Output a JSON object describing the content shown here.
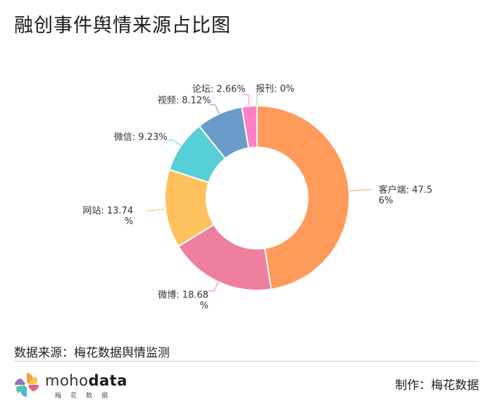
{
  "title": "融创事件舆情来源占比图",
  "chart_data": {
    "type": "pie",
    "style": "donut",
    "slices": [
      {
        "name": "客户端",
        "value": 47.56,
        "label_lines": [
          "客户端: 47.5",
          "6%"
        ],
        "color": "#ff9b5a"
      },
      {
        "name": "微博",
        "value": 18.68,
        "label_lines": [
          "微博: 18.68",
          "%"
        ],
        "color": "#ef7f9e"
      },
      {
        "name": "网站",
        "value": 13.74,
        "label_lines": [
          "网站: 13.74",
          "%"
        ],
        "color": "#ffc15e"
      },
      {
        "name": "微信",
        "value": 9.23,
        "label_lines": [
          "微信: 9.23%"
        ],
        "color": "#56d0d6"
      },
      {
        "name": "视频",
        "value": 8.12,
        "label_lines": [
          "视频: 8.12%"
        ],
        "color": "#6a9cc9"
      },
      {
        "name": "论坛",
        "value": 2.66,
        "label_lines": [
          "论坛: 2.66%"
        ],
        "color": "#ff7fc9"
      },
      {
        "name": "报刊",
        "value": 0,
        "label_lines": [
          "报刊: 0%"
        ],
        "color": "#9ccf8a"
      }
    ]
  },
  "source": "数据来源：梅花数据舆情监测",
  "logo": {
    "word_light": "moho",
    "word_bold": "data",
    "subtitle": "梅花数据"
  },
  "maker": "制作：梅花数据"
}
